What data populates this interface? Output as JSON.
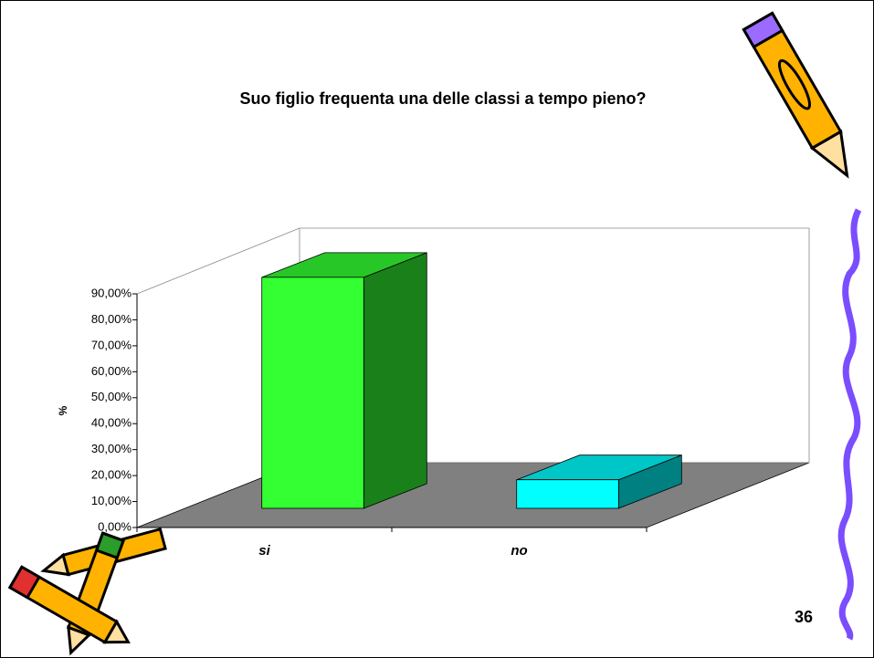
{
  "chart_data": {
    "type": "bar3d",
    "title": "Suo figlio frequenta una delle classi a tempo pieno?",
    "y_label": "%",
    "categories": [
      "si",
      "no"
    ],
    "values": [
      89,
      11
    ],
    "colors": [
      "#33ff33",
      "#00ffff"
    ],
    "ylim": [
      0,
      90
    ],
    "yticks": [
      {
        "value": 0,
        "label": "0,00%"
      },
      {
        "value": 10,
        "label": "10,00%"
      },
      {
        "value": 20,
        "label": "20,00%"
      },
      {
        "value": 30,
        "label": "30,00%"
      },
      {
        "value": 40,
        "label": "40,00%"
      },
      {
        "value": 50,
        "label": "50,00%"
      },
      {
        "value": 60,
        "label": "60,00%"
      },
      {
        "value": 70,
        "label": "70,00%"
      },
      {
        "value": 80,
        "label": "80,00%"
      },
      {
        "value": 90,
        "label": "90,00%"
      }
    ]
  },
  "page_number": "36"
}
